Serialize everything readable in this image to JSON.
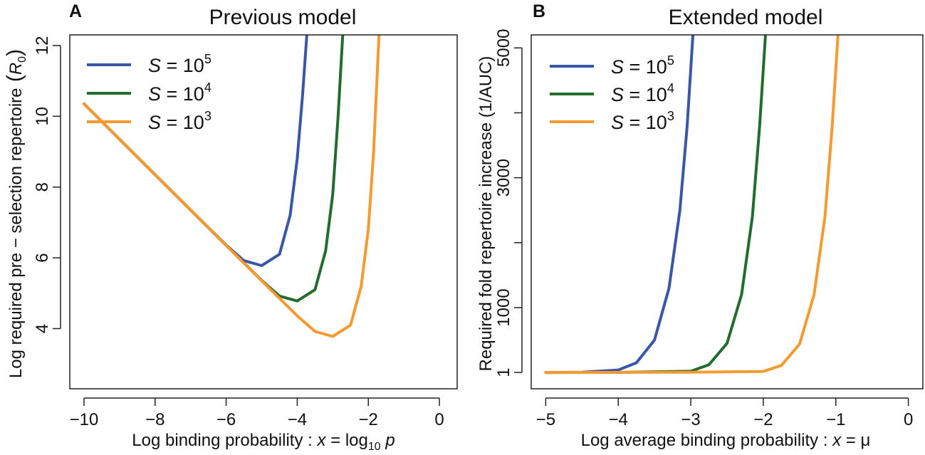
{
  "chart_data": [
    {
      "panel": "A",
      "type": "line",
      "title": "Previous model",
      "xlabel": {
        "prefix": "Log binding probability :",
        "var": "x",
        "eq": "=",
        "fn": "log",
        "sub": "10",
        "arg": "p"
      },
      "ylabel": {
        "main": "Log required pre − selection repertoire",
        "open": "(",
        "sym": "R",
        "sub": "0",
        "close": ")"
      },
      "xlim": [
        -10.4,
        0.5
      ],
      "ylim": [
        2.3,
        12.3
      ],
      "xticks": [
        -10,
        -8,
        -6,
        -4,
        -2,
        0
      ],
      "xtick_labels": [
        "−10",
        "−8",
        "−6",
        "−4",
        "−2",
        "0"
      ],
      "yticks": [
        4,
        6,
        8,
        10,
        12
      ],
      "ytick_labels": [
        "4",
        "6",
        "8",
        "10",
        "12"
      ],
      "legend": {
        "position": "top-left",
        "entries": [
          {
            "sym": "S",
            "eq": "= 10",
            "exp": "5",
            "color": "#3a56a6"
          },
          {
            "sym": "S",
            "eq": "= 10",
            "exp": "4",
            "color": "#226d2d"
          },
          {
            "sym": "S",
            "eq": "= 10",
            "exp": "3",
            "color": "#f59a30"
          }
        ]
      },
      "series": [
        {
          "name": "S = 10^5",
          "color": "#3a56a6",
          "points": [
            [
              -10,
              10.35
            ],
            [
              -9,
              9.35
            ],
            [
              -8,
              8.35
            ],
            [
              -7,
              7.35
            ],
            [
              -6,
              6.36
            ],
            [
              -5.5,
              5.92
            ],
            [
              -5,
              5.78
            ],
            [
              -4.5,
              6.1
            ],
            [
              -4.2,
              7.2
            ],
            [
              -4,
              8.8
            ],
            [
              -3.85,
              10.6
            ],
            [
              -3.73,
              12.3
            ]
          ]
        },
        {
          "name": "S = 10^4",
          "color": "#226d2d",
          "points": [
            [
              -10,
              10.35
            ],
            [
              -9,
              9.35
            ],
            [
              -8,
              8.35
            ],
            [
              -7,
              7.35
            ],
            [
              -6,
              6.35
            ],
            [
              -5,
              5.36
            ],
            [
              -4.5,
              4.92
            ],
            [
              -4,
              4.78
            ],
            [
              -3.5,
              5.1
            ],
            [
              -3.2,
              6.2
            ],
            [
              -3,
              7.8
            ],
            [
              -2.85,
              10.0
            ],
            [
              -2.72,
              12.3
            ]
          ]
        },
        {
          "name": "S = 10^3",
          "color": "#f59a30",
          "points": [
            [
              -10,
              10.35
            ],
            [
              -9,
              9.35
            ],
            [
              -8,
              8.35
            ],
            [
              -7,
              7.35
            ],
            [
              -6,
              6.35
            ],
            [
              -5,
              5.35
            ],
            [
              -4,
              4.36
            ],
            [
              -3.5,
              3.92
            ],
            [
              -3,
              3.78
            ],
            [
              -2.5,
              4.1
            ],
            [
              -2.2,
              5.2
            ],
            [
              -2,
              6.8
            ],
            [
              -1.85,
              9.0
            ],
            [
              -1.7,
              12.3
            ]
          ]
        }
      ]
    },
    {
      "panel": "B",
      "type": "line",
      "title": "Extended model",
      "xlabel": {
        "prefix": "Log average binding probability :",
        "var": "x",
        "eq": "= μ"
      },
      "ylabel": {
        "main": "Required fold repertoire increase (1/AUC)"
      },
      "xlim": [
        -5.2,
        0.2
      ],
      "ylim": [
        -250,
        5200
      ],
      "xticks": [
        -5,
        -4,
        -3,
        -2,
        -1,
        0
      ],
      "xtick_labels": [
        "−5",
        "−4",
        "−3",
        "−2",
        "−1",
        "0"
      ],
      "yticks": [
        1,
        1000,
        2000,
        3000,
        4000,
        5000
      ],
      "ytick_labels": [
        "1",
        "1000",
        "",
        "3000",
        "",
        "5000"
      ],
      "legend": {
        "position": "top-left",
        "entries": [
          {
            "sym": "S",
            "eq": "= 10",
            "exp": "5",
            "color": "#3a56a6"
          },
          {
            "sym": "S",
            "eq": "= 10",
            "exp": "4",
            "color": "#226d2d"
          },
          {
            "sym": "S",
            "eq": "= 10",
            "exp": "3",
            "color": "#f59a30"
          }
        ]
      },
      "series": [
        {
          "name": "S = 10^5",
          "color": "#3a56a6",
          "points": [
            [
              -5,
              1
            ],
            [
              -4.5,
              5
            ],
            [
              -4,
              40
            ],
            [
              -3.75,
              150
            ],
            [
              -3.5,
              500
            ],
            [
              -3.3,
              1300
            ],
            [
              -3.15,
              2500
            ],
            [
              -3.05,
              3800
            ],
            [
              -2.97,
              5200
            ]
          ]
        },
        {
          "name": "S = 10^4",
          "color": "#226d2d",
          "points": [
            [
              -5,
              1
            ],
            [
              -4,
              2
            ],
            [
              -3,
              20
            ],
            [
              -2.75,
              120
            ],
            [
              -2.5,
              450
            ],
            [
              -2.3,
              1200
            ],
            [
              -2.15,
              2400
            ],
            [
              -2.05,
              3800
            ],
            [
              -1.97,
              5200
            ]
          ]
        },
        {
          "name": "S = 10^3",
          "color": "#f59a30",
          "points": [
            [
              -5,
              1
            ],
            [
              -3,
              5
            ],
            [
              -2,
              18
            ],
            [
              -1.75,
              110
            ],
            [
              -1.5,
              440
            ],
            [
              -1.3,
              1200
            ],
            [
              -1.15,
              2400
            ],
            [
              -1.05,
              3800
            ],
            [
              -0.97,
              5200
            ]
          ]
        }
      ]
    }
  ]
}
